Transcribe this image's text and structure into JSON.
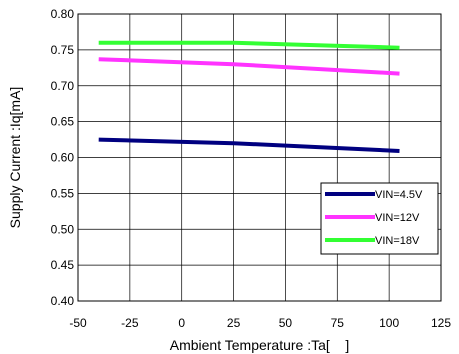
{
  "colors": {
    "background": "#ffffff",
    "axis": "#000000",
    "grid": "#000000",
    "vin45": "#000080",
    "vin12": "#ff33ff",
    "vin18": "#33ff33"
  },
  "chart_data": {
    "type": "line",
    "title": "",
    "xlabel": "Ambient Temperature :Ta[    ]",
    "ylabel": "Supply Current :Iq[mA]",
    "xlim": [
      -50,
      125
    ],
    "ylim": [
      0.4,
      0.8
    ],
    "xticks": [
      -50,
      -25,
      0,
      25,
      50,
      75,
      100,
      125
    ],
    "yticks": [
      0.4,
      0.45,
      0.5,
      0.55,
      0.6,
      0.65,
      0.7,
      0.75,
      0.8
    ],
    "xtick_labels": [
      "-50",
      "-25",
      "0",
      "25",
      "50",
      "75",
      "100",
      "125"
    ],
    "ytick_labels": [
      "0.40",
      "0.45",
      "0.50",
      "0.55",
      "0.60",
      "0.65",
      "0.70",
      "0.75",
      "0.80"
    ],
    "grid": true,
    "legend_position": "lower-right",
    "series": [
      {
        "name": "VIN=4.5V",
        "color": "#000080",
        "x": [
          -40,
          25,
          105
        ],
        "y": [
          0.625,
          0.62,
          0.609
        ]
      },
      {
        "name": "VIN=12V",
        "color": "#ff33ff",
        "x": [
          -40,
          25,
          105
        ],
        "y": [
          0.737,
          0.73,
          0.717
        ]
      },
      {
        "name": "VIN=18V",
        "color": "#33ff33",
        "x": [
          -40,
          25,
          105
        ],
        "y": [
          0.76,
          0.76,
          0.753
        ]
      }
    ]
  }
}
